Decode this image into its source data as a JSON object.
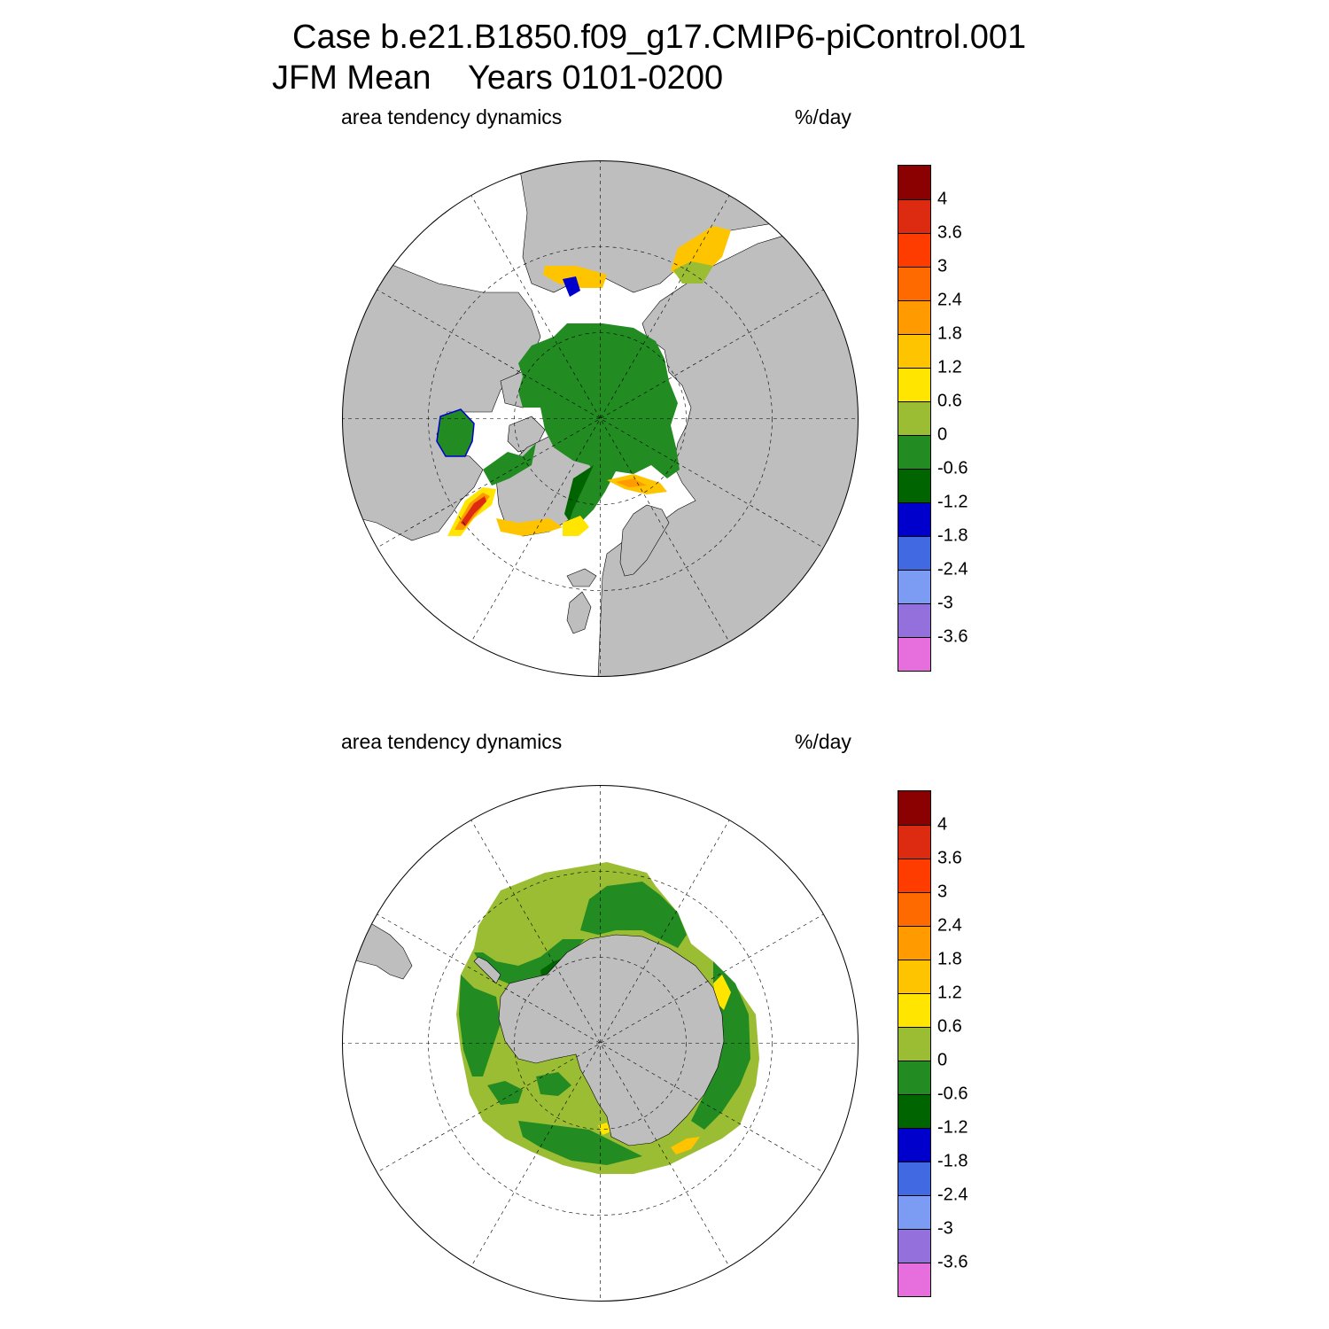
{
  "title": {
    "line1": "Case b.e21.B1850.f09_g17.CMIP6-piControl.001",
    "line2": "JFM Mean    Years 0101-0200"
  },
  "colors": {
    "land": "#bebebe",
    "levels": [
      "#8b0000",
      "#dc2b10",
      "#ff3c00",
      "#ff6a00",
      "#ff9a00",
      "#ffc400",
      "#ffe500",
      "#9bbd33",
      "#228b22",
      "#006400",
      "#0000cd",
      "#4169e1",
      "#7b9cf2",
      "#9370db",
      "#e76fdd"
    ]
  },
  "colorbar": {
    "labels": [
      "4",
      "3.6",
      "3",
      "2.4",
      "1.8",
      "1.2",
      "0.6",
      "0",
      "-0.6",
      "-1.2",
      "-1.8",
      "-2.4",
      "-3",
      "-3.6"
    ]
  },
  "panels": [
    {
      "id": "north",
      "variable": "area tendency dynamics",
      "units": "%/day",
      "hemisphere": "Northern Hemisphere polar stereographic"
    },
    {
      "id": "south",
      "variable": "area tendency dynamics",
      "units": "%/day",
      "hemisphere": "Southern Hemisphere polar stereographic"
    }
  ]
}
